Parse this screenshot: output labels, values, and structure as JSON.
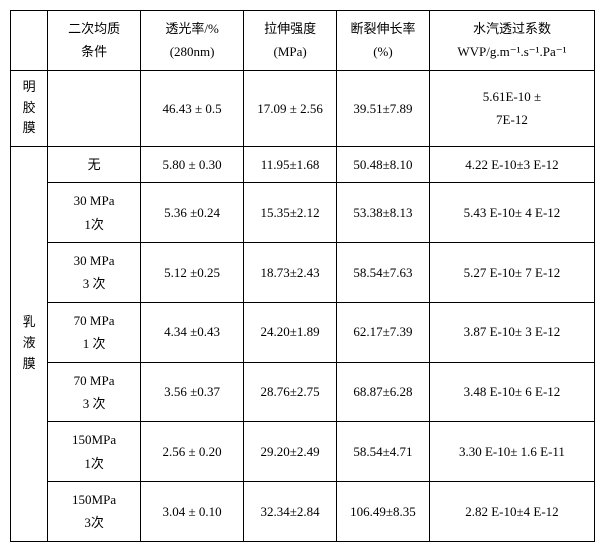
{
  "headers": {
    "col1": "",
    "col2_l1": "二次均质",
    "col2_l2": "条件",
    "col3_l1": "透光率/%",
    "col3_l2": "(280nm)",
    "col4_l1": "拉伸强度",
    "col4_l2": "(MPa)",
    "col5_l1": "断裂伸长率",
    "col5_l2": "(%)",
    "col6_l1": "水汽透过系数",
    "col6_l2": "WVP/g.m⁻¹.s⁻¹.Pa⁻¹"
  },
  "row_groups": {
    "g1": "明胶膜",
    "g2": "乳液膜"
  },
  "rows": [
    {
      "condition": "",
      "trans": "46.43 ± 0.5",
      "tensile": "17.09 ± 2.56",
      "elong": "39.51±7.89",
      "wvp_l1": "5.61E-10 ±",
      "wvp_l2": "7E-12"
    },
    {
      "condition": "无",
      "trans": "5.80 ± 0.30",
      "tensile": "11.95±1.68",
      "elong": "50.48±8.10",
      "wvp": "4.22 E-10±3 E-12"
    },
    {
      "cond_l1": "30 MPa",
      "cond_l2": "1次",
      "trans": "5.36 ±0.24",
      "tensile": "15.35±2.12",
      "elong": "53.38±8.13",
      "wvp": "5.43 E-10± 4 E-12"
    },
    {
      "cond_l1": "30 MPa",
      "cond_l2": "3 次",
      "trans": "5.12 ±0.25",
      "tensile": "18.73±2.43",
      "elong": "58.54±7.63",
      "wvp": "5.27 E-10± 7 E-12"
    },
    {
      "cond_l1": "70 MPa",
      "cond_l2": "1 次",
      "trans": "4.34 ±0.43",
      "tensile": "24.20±1.89",
      "elong": "62.17±7.39",
      "wvp": "3.87 E-10± 3 E-12"
    },
    {
      "cond_l1": "70 MPa",
      "cond_l2": "3 次",
      "trans": "3.56 ±0.37",
      "tensile": "28.76±2.75",
      "elong": "68.87±6.28",
      "wvp": "3.48 E-10± 6 E-12"
    },
    {
      "cond_l1": "150MPa",
      "cond_l2": "1次",
      "trans": "2.56 ± 0.20",
      "tensile": "29.20±2.49",
      "elong": "58.54±4.71",
      "wvp": "3.30 E-10± 1.6 E-11"
    },
    {
      "cond_l1": "150MPa",
      "cond_l2": "3次",
      "trans": "3.04 ± 0.10",
      "tensile": "32.34±2.84",
      "elong": "106.49±8.35",
      "wvp": "2.82 E-10±4 E-12"
    }
  ]
}
